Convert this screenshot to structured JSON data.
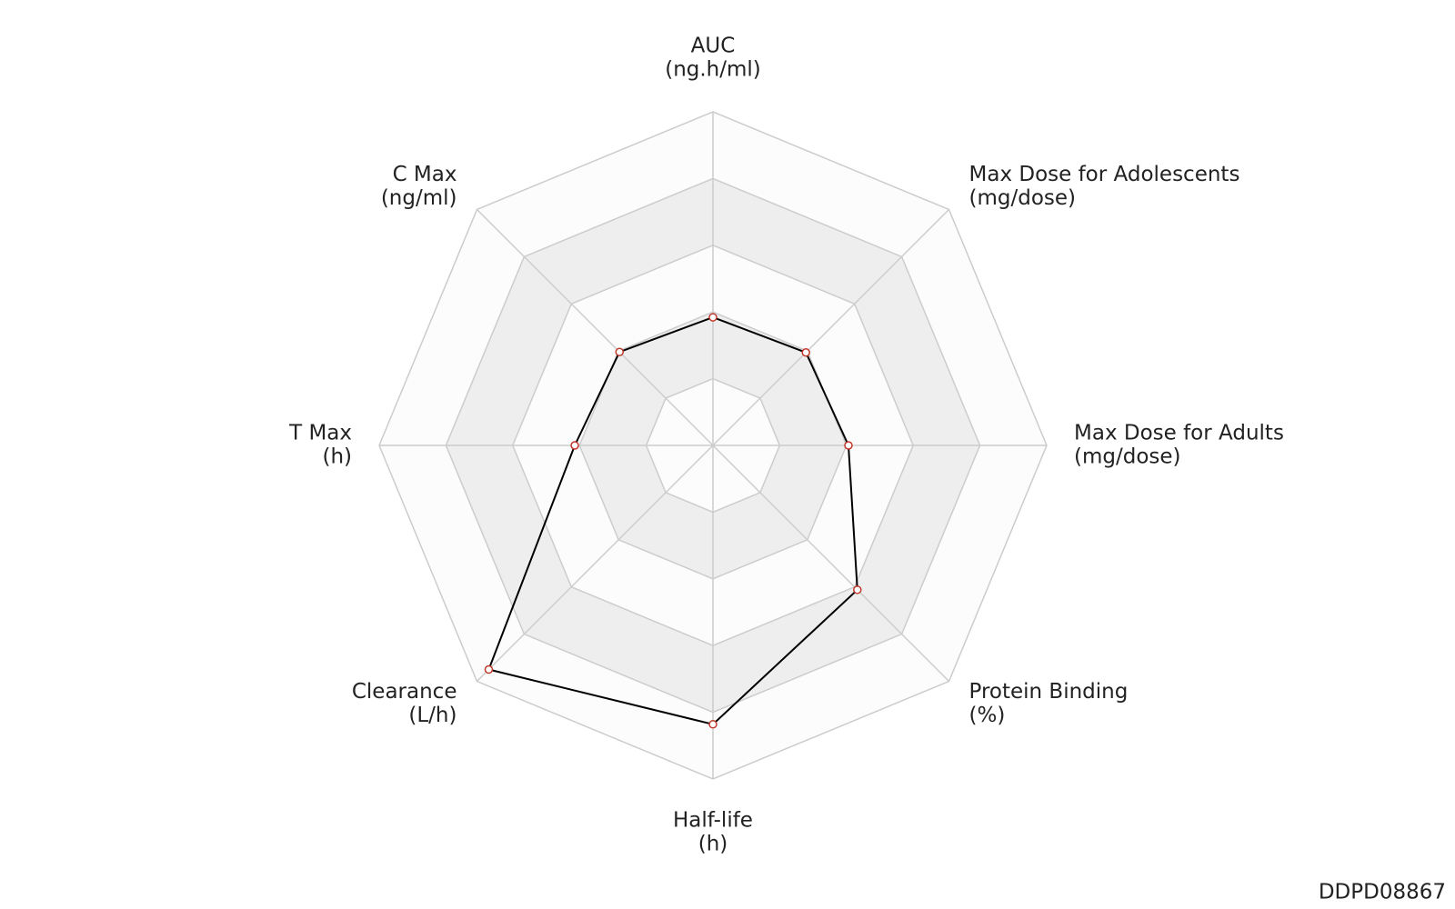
{
  "chart_data": {
    "type": "radar",
    "categories": [
      "AUC",
      "Max Dose for Adolescents",
      "Max Dose for Adults",
      "Protein Binding",
      "Half-life",
      "Clearance",
      "T Max",
      "C Max"
    ],
    "units": [
      "(ng.h/ml)",
      "(mg/dose)",
      "(mg/dose)",
      "(%)",
      "(h)",
      "(L/h)",
      "(h)",
      "(ng/ml)"
    ],
    "values": [
      1.92,
      1.97,
      2.03,
      3.06,
      4.18,
      4.75,
      2.07,
      1.98
    ],
    "rlim": [
      0,
      5
    ],
    "rticks": [
      1,
      2,
      3,
      4,
      5
    ],
    "color": "#000000",
    "marker_color": "#c0392b",
    "grid": true,
    "band_colors": [
      "#fcfcfc",
      "#eeeeee"
    ]
  },
  "watermark": "DDPD08867"
}
